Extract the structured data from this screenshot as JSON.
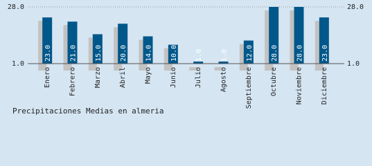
{
  "chart_data": {
    "type": "bar",
    "title": "Precipitaciones Medias en almeria",
    "categories": [
      "Enero",
      "Febrero",
      "Marzo",
      "Abril",
      "Mayo",
      "Junio",
      "Julio",
      "Agosto",
      "Septiembre",
      "Octubre",
      "Noviembre",
      "Diciembre"
    ],
    "values": [
      23,
      21,
      15,
      20,
      14,
      10,
      1,
      1,
      12,
      28,
      28,
      23
    ],
    "value_labels": [
      "23.0",
      "21.0",
      "15.0",
      "20.0",
      "14.0",
      "10.0",
      "1.0",
      "1.0",
      "12.0",
      "28.0",
      "28.0",
      "23.0"
    ],
    "color": "#00578a",
    "shadow_color": "#c2c2c2",
    "ylim": [
      1,
      28
    ],
    "yticks": [
      {
        "value": 1,
        "label": "1.0"
      },
      {
        "value": 28,
        "label": "28.0"
      }
    ]
  }
}
